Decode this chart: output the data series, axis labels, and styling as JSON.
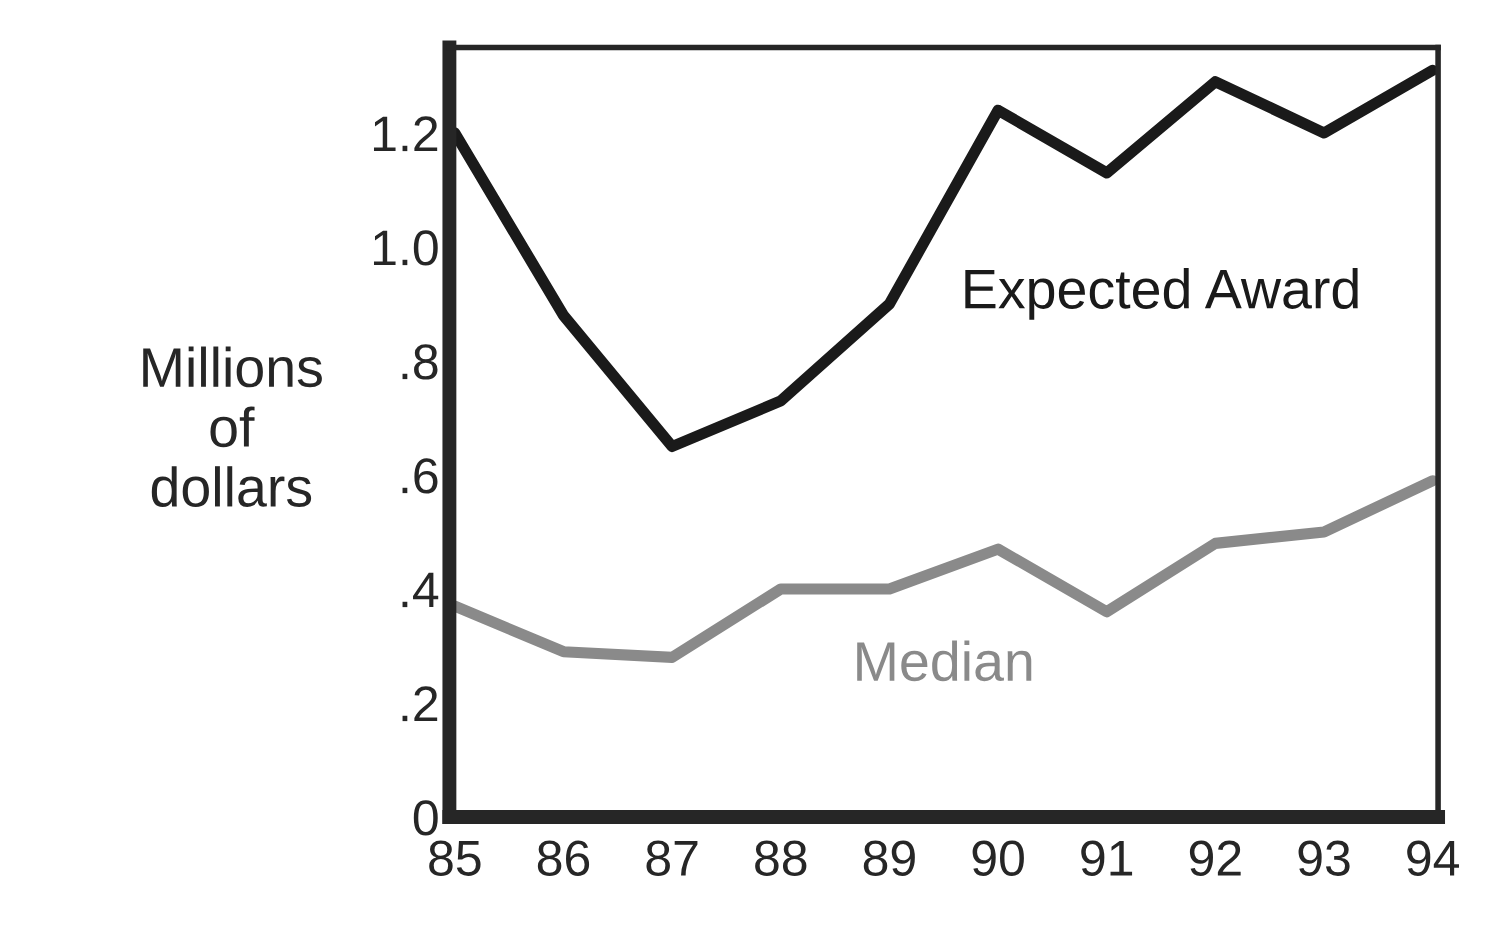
{
  "chart_data": {
    "type": "line",
    "ylabel": "Millions\nof\ndollars",
    "categories": [
      "85",
      "86",
      "87",
      "88",
      "89",
      "90",
      "91",
      "92",
      "93",
      "94"
    ],
    "series": [
      {
        "name": "Expected Award",
        "color": "#1a1a1a",
        "values": [
          1.2,
          0.88,
          0.65,
          0.73,
          0.9,
          1.24,
          1.13,
          1.29,
          1.2,
          1.31
        ]
      },
      {
        "name": "Median",
        "color": "#8a8a8a",
        "values": [
          0.37,
          0.29,
          0.28,
          0.4,
          0.4,
          0.47,
          0.36,
          0.48,
          0.5,
          0.59
        ]
      }
    ],
    "ylim": [
      0,
      1.35
    ],
    "yticks": [
      0,
      {
        "value": 0.2,
        "label": ".2"
      },
      {
        "value": 0.4,
        "label": ".4"
      },
      {
        "value": 0.6,
        "label": ".6"
      },
      {
        "value": 0.8,
        "label": ".8"
      },
      {
        "value": 1.0,
        "label": "1.0"
      },
      {
        "value": 1.2,
        "label": "1.2"
      }
    ],
    "grid": false,
    "legend": false,
    "marker": "none",
    "line_style": "solid"
  }
}
